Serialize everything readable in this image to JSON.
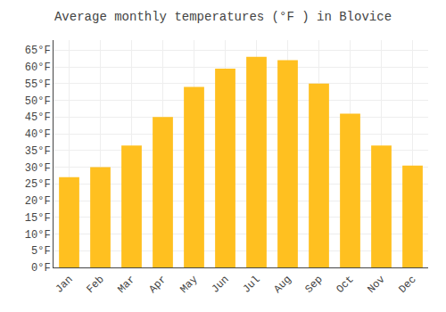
{
  "chart_data": {
    "type": "bar",
    "title": "Average monthly temperatures (°F ) in Blovice",
    "categories": [
      "Jan",
      "Feb",
      "Mar",
      "Apr",
      "May",
      "Jun",
      "Jul",
      "Aug",
      "Sep",
      "Oct",
      "Nov",
      "Dec"
    ],
    "values": [
      27.0,
      30.0,
      36.5,
      45.0,
      54.0,
      59.5,
      63.0,
      62.0,
      55.0,
      46.0,
      36.5,
      30.5
    ],
    "color": "#FFC020",
    "ylim": [
      0,
      68
    ],
    "yticks": [
      {
        "value": 0,
        "label": "0°F"
      },
      {
        "value": 5,
        "label": "5°F"
      },
      {
        "value": 10,
        "label": "10°F"
      },
      {
        "value": 15,
        "label": "15°F"
      },
      {
        "value": 20,
        "label": "20°F"
      },
      {
        "value": 25,
        "label": "25°F"
      },
      {
        "value": 30,
        "label": "30°F"
      },
      {
        "value": 35,
        "label": "35°F"
      },
      {
        "value": 40,
        "label": "40°F"
      },
      {
        "value": 45,
        "label": "45°F"
      },
      {
        "value": 50,
        "label": "50°F"
      },
      {
        "value": 55,
        "label": "55°F"
      },
      {
        "value": 60,
        "label": "60°F"
      },
      {
        "value": 65,
        "label": "65°F"
      }
    ],
    "grid": true
  }
}
